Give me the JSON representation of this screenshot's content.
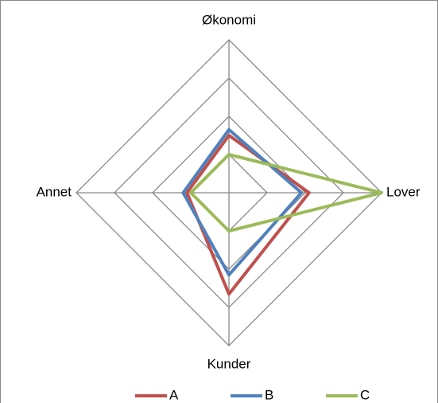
{
  "chart_data": {
    "type": "radar",
    "categories": [
      "Økonomi",
      "Lover",
      "Kunder",
      "Annet"
    ],
    "series": [
      {
        "name": "A",
        "color": "#c0504d",
        "values": [
          1.5,
          2.1,
          2.65,
          1.1
        ]
      },
      {
        "name": "B",
        "color": "#4f81bd",
        "values": [
          1.65,
          1.9,
          2.15,
          1.2
        ]
      },
      {
        "name": "C",
        "color": "#9bbb59",
        "values": [
          1,
          4,
          1,
          1
        ]
      }
    ],
    "ylim": [
      0,
      4
    ],
    "yticks": [
      1,
      2,
      3,
      4
    ],
    "grid": true,
    "legend": "bottom"
  }
}
